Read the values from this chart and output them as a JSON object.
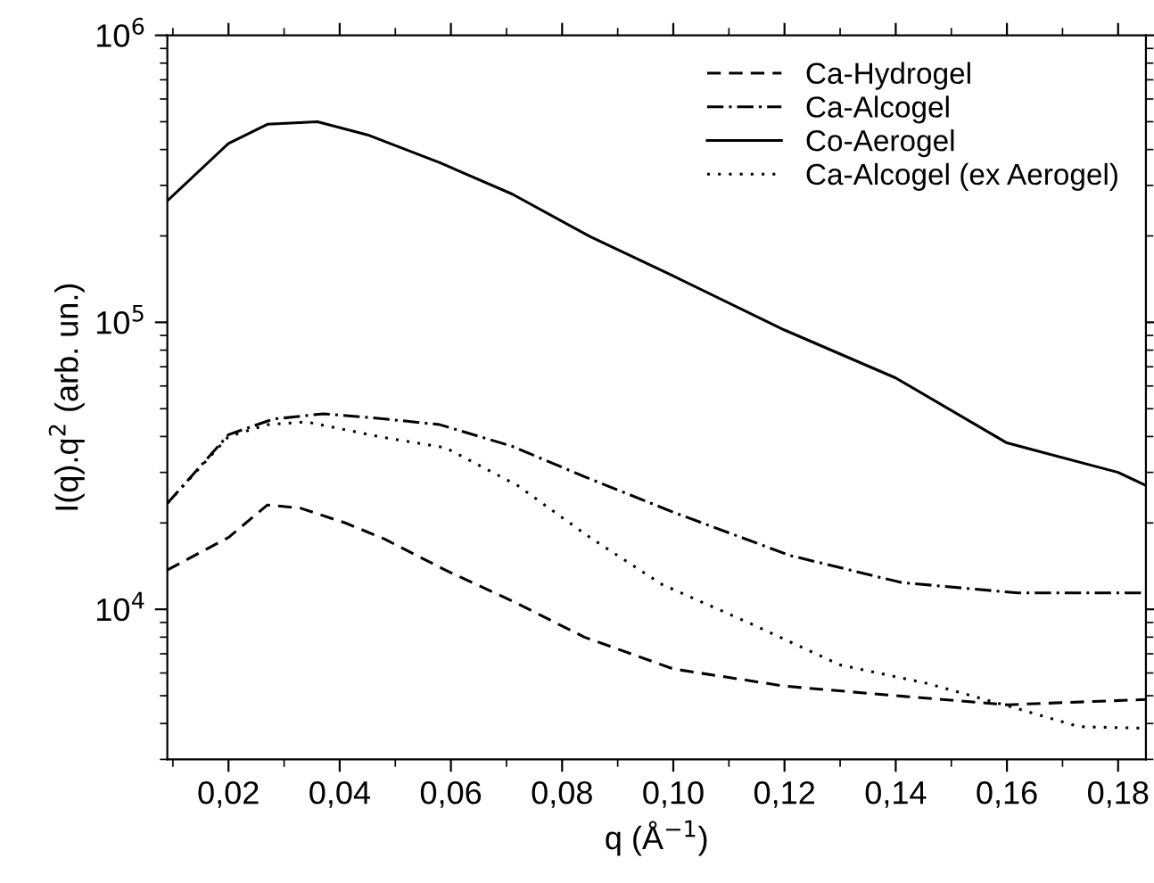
{
  "chart_data": {
    "type": "line",
    "xlabel": "q (Å$^{−1}$)",
    "ylabel": "I(q).q$^{2}$ (arb. un.)",
    "log": "y",
    "xlim": [
      0.009,
      0.185
    ],
    "ylim": [
      3000,
      1000000
    ],
    "xticks": [
      {
        "value": 0.02,
        "label": "0,02"
      },
      {
        "value": 0.04,
        "label": "0,04"
      },
      {
        "value": 0.06,
        "label": "0,06"
      },
      {
        "value": 0.08,
        "label": "0,08"
      },
      {
        "value": 0.1,
        "label": "0,10"
      },
      {
        "value": 0.12,
        "label": "0,12"
      },
      {
        "value": 0.14,
        "label": "0,14"
      },
      {
        "value": 0.16,
        "label": "0,16"
      },
      {
        "value": 0.18,
        "label": "0,18"
      }
    ],
    "yticks": [
      {
        "value": 10000,
        "label": "10$^{4}$"
      },
      {
        "value": 100000,
        "label": "10$^{5}$"
      },
      {
        "value": 1000000,
        "label": "10$^{6}$"
      }
    ],
    "legend": "top right",
    "grid": false,
    "marker": "none",
    "series": [
      {
        "name": "Ca-Hydrogel",
        "color": "#000000",
        "line_style": "dashed",
        "x": [
          0.009,
          0.02,
          0.027,
          0.033,
          0.041,
          0.048,
          0.059,
          0.071,
          0.084,
          0.1,
          0.12,
          0.14,
          0.16,
          0.185
        ],
        "values": [
          13700,
          17800,
          23100,
          22500,
          20000,
          17600,
          13700,
          10700,
          8000,
          6200,
          5400,
          5000,
          4650,
          4850
        ]
      },
      {
        "name": "Ca-Alcogel",
        "color": "#000000",
        "line_style": "dashdot",
        "x": [
          0.009,
          0.02,
          0.028,
          0.037,
          0.046,
          0.058,
          0.071,
          0.084,
          0.1,
          0.121,
          0.141,
          0.162,
          0.185
        ],
        "values": [
          23400,
          40600,
          46000,
          48000,
          46500,
          44000,
          37000,
          29000,
          21800,
          15400,
          12400,
          11400,
          11400
        ]
      },
      {
        "name": "Co-Aerogel",
        "color": "#000000",
        "line_style": "solid",
        "x": [
          0.009,
          0.02,
          0.027,
          0.036,
          0.045,
          0.058,
          0.071,
          0.085,
          0.1,
          0.12,
          0.14,
          0.16,
          0.18,
          0.185
        ],
        "values": [
          265000,
          420000,
          490000,
          500000,
          450000,
          360000,
          280000,
          199000,
          145000,
          94000,
          64000,
          38000,
          30000,
          27000
        ]
      },
      {
        "name": "Ca-Alcogel (ex Aerogel)",
        "color": "#000000",
        "line_style": "dotted",
        "x": [
          0.009,
          0.02,
          0.027,
          0.034,
          0.047,
          0.059,
          0.072,
          0.085,
          0.098,
          0.114,
          0.13,
          0.146,
          0.162,
          0.173,
          0.185
        ],
        "values": [
          23400,
          40000,
          44000,
          45000,
          40000,
          36600,
          27000,
          17800,
          12200,
          8900,
          6400,
          5500,
          4500,
          3900,
          3850
        ]
      }
    ]
  }
}
